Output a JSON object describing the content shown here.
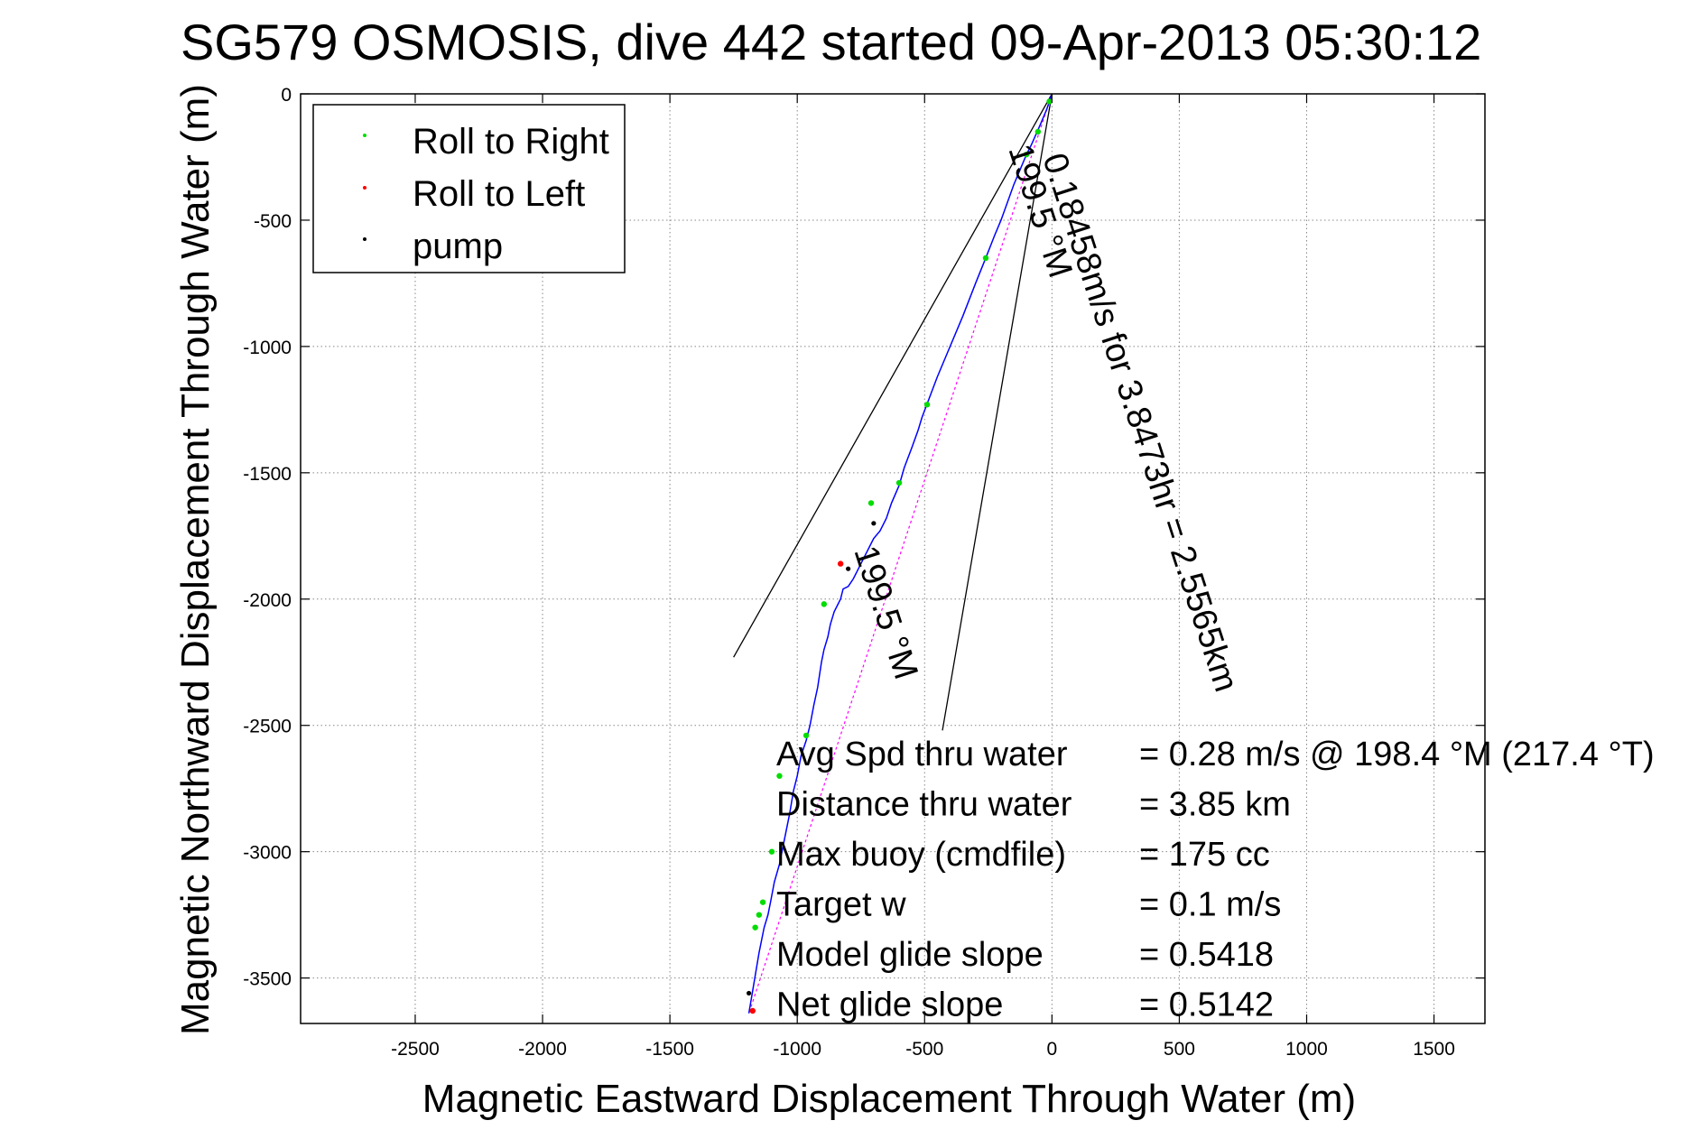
{
  "chart_data": {
    "type": "line",
    "title": "SG579 OSMOSIS, dive 442 started 09-Apr-2013 05:30:12",
    "xlabel": "Magnetic Eastward Displacement Through Water (m)",
    "ylabel": "Magnetic Northward Displacement Through Water (m)",
    "xlim": [
      -2950,
      1700
    ],
    "ylim": [
      -3680,
      0
    ],
    "xticks": [
      -2500,
      -2000,
      -1500,
      -1000,
      -500,
      0,
      500,
      1000,
      1500
    ],
    "yticks": [
      0,
      -500,
      -1000,
      -1500,
      -2000,
      -2500,
      -3000,
      -3500
    ],
    "grid": true,
    "legend_position": "top-left",
    "legend": [
      "Roll to Right",
      "Roll to Left",
      "pump"
    ],
    "colors": {
      "track": "#0000ff",
      "roll_right": "#00dd00",
      "roll_left": "#ff0000",
      "pump": "#000000",
      "heading_line": "#ff00ff",
      "cone": "#000000",
      "grid": "#888888"
    },
    "track": {
      "x": [
        0,
        -20,
        -45,
        -80,
        -100,
        -125,
        -150,
        -175,
        -200,
        -225,
        -260,
        -300,
        -350,
        -400,
        -450,
        -480,
        -510,
        -525,
        -550,
        -580,
        -600,
        -630,
        -650,
        -675,
        -700,
        -715,
        -735,
        -760,
        -780,
        -800,
        -820,
        -830,
        -840,
        -855,
        -870,
        -880,
        -895,
        -905,
        -920,
        -935,
        -950,
        -965,
        -985,
        -1000,
        -1015,
        -1030,
        -1050,
        -1070,
        -1090,
        -1105,
        -1115,
        -1130,
        -1140,
        -1150,
        -1160,
        -1170,
        -1180,
        -1190
      ],
      "y": [
        0,
        -60,
        -120,
        -200,
        -240,
        -300,
        -360,
        -430,
        -500,
        -560,
        -650,
        -750,
        -880,
        -1000,
        -1120,
        -1200,
        -1280,
        -1330,
        -1400,
        -1480,
        -1550,
        -1620,
        -1680,
        -1730,
        -1760,
        -1790,
        -1830,
        -1880,
        -1920,
        -1950,
        -1960,
        -2000,
        -2020,
        -2050,
        -2100,
        -2150,
        -2200,
        -2250,
        -2350,
        -2420,
        -2500,
        -2560,
        -2620,
        -2700,
        -2760,
        -2850,
        -2950,
        -3050,
        -3120,
        -3200,
        -3250,
        -3300,
        -3350,
        -3400,
        -3460,
        -3520,
        -3580,
        -3640
      ]
    },
    "roll_right": {
      "x": [
        -10,
        -55,
        -100,
        -260,
        -490,
        -600,
        -710,
        -895,
        -965,
        -1070,
        -1100,
        -1135,
        -1150,
        -1165
      ],
      "y": [
        -30,
        -150,
        -240,
        -650,
        -1230,
        -1540,
        -1620,
        -2020,
        -2540,
        -2700,
        -3000,
        -3200,
        -3250,
        -3300
      ]
    },
    "roll_left": {
      "x": [
        -830,
        -1175
      ],
      "y": [
        -1860,
        -3630
      ]
    },
    "pump": {
      "x": [
        -700,
        -800,
        -1190
      ],
      "y": [
        -1700,
        -1880,
        -3560
      ]
    },
    "heading_line": {
      "x": [
        0,
        -1190
      ],
      "y": [
        0,
        -3640
      ]
    },
    "cone": {
      "x": [
        -1250,
        0,
        -430
      ],
      "y": [
        -2230,
        0,
        -2520
      ]
    },
    "annotations": [
      "0.18458m/s for 3.8473hr = 2.5565km",
      "199.5 °M",
      "199.5 °M"
    ],
    "stats": [
      {
        "label": "Avg Spd thru water",
        "value": "=  0.28 m/s @ 198.4 °M (217.4 °T)"
      },
      {
        "label": "Distance thru water",
        "value": "=  3.85 km"
      },
      {
        "label": "Max buoy (cmdfile)",
        "value": "= 175 cc"
      },
      {
        "label": "Target w",
        "value": "= 0.1 m/s"
      },
      {
        "label": "Model glide slope",
        "value": "= 0.5418"
      },
      {
        "label": "Net glide slope",
        "value": "= 0.5142"
      }
    ]
  }
}
